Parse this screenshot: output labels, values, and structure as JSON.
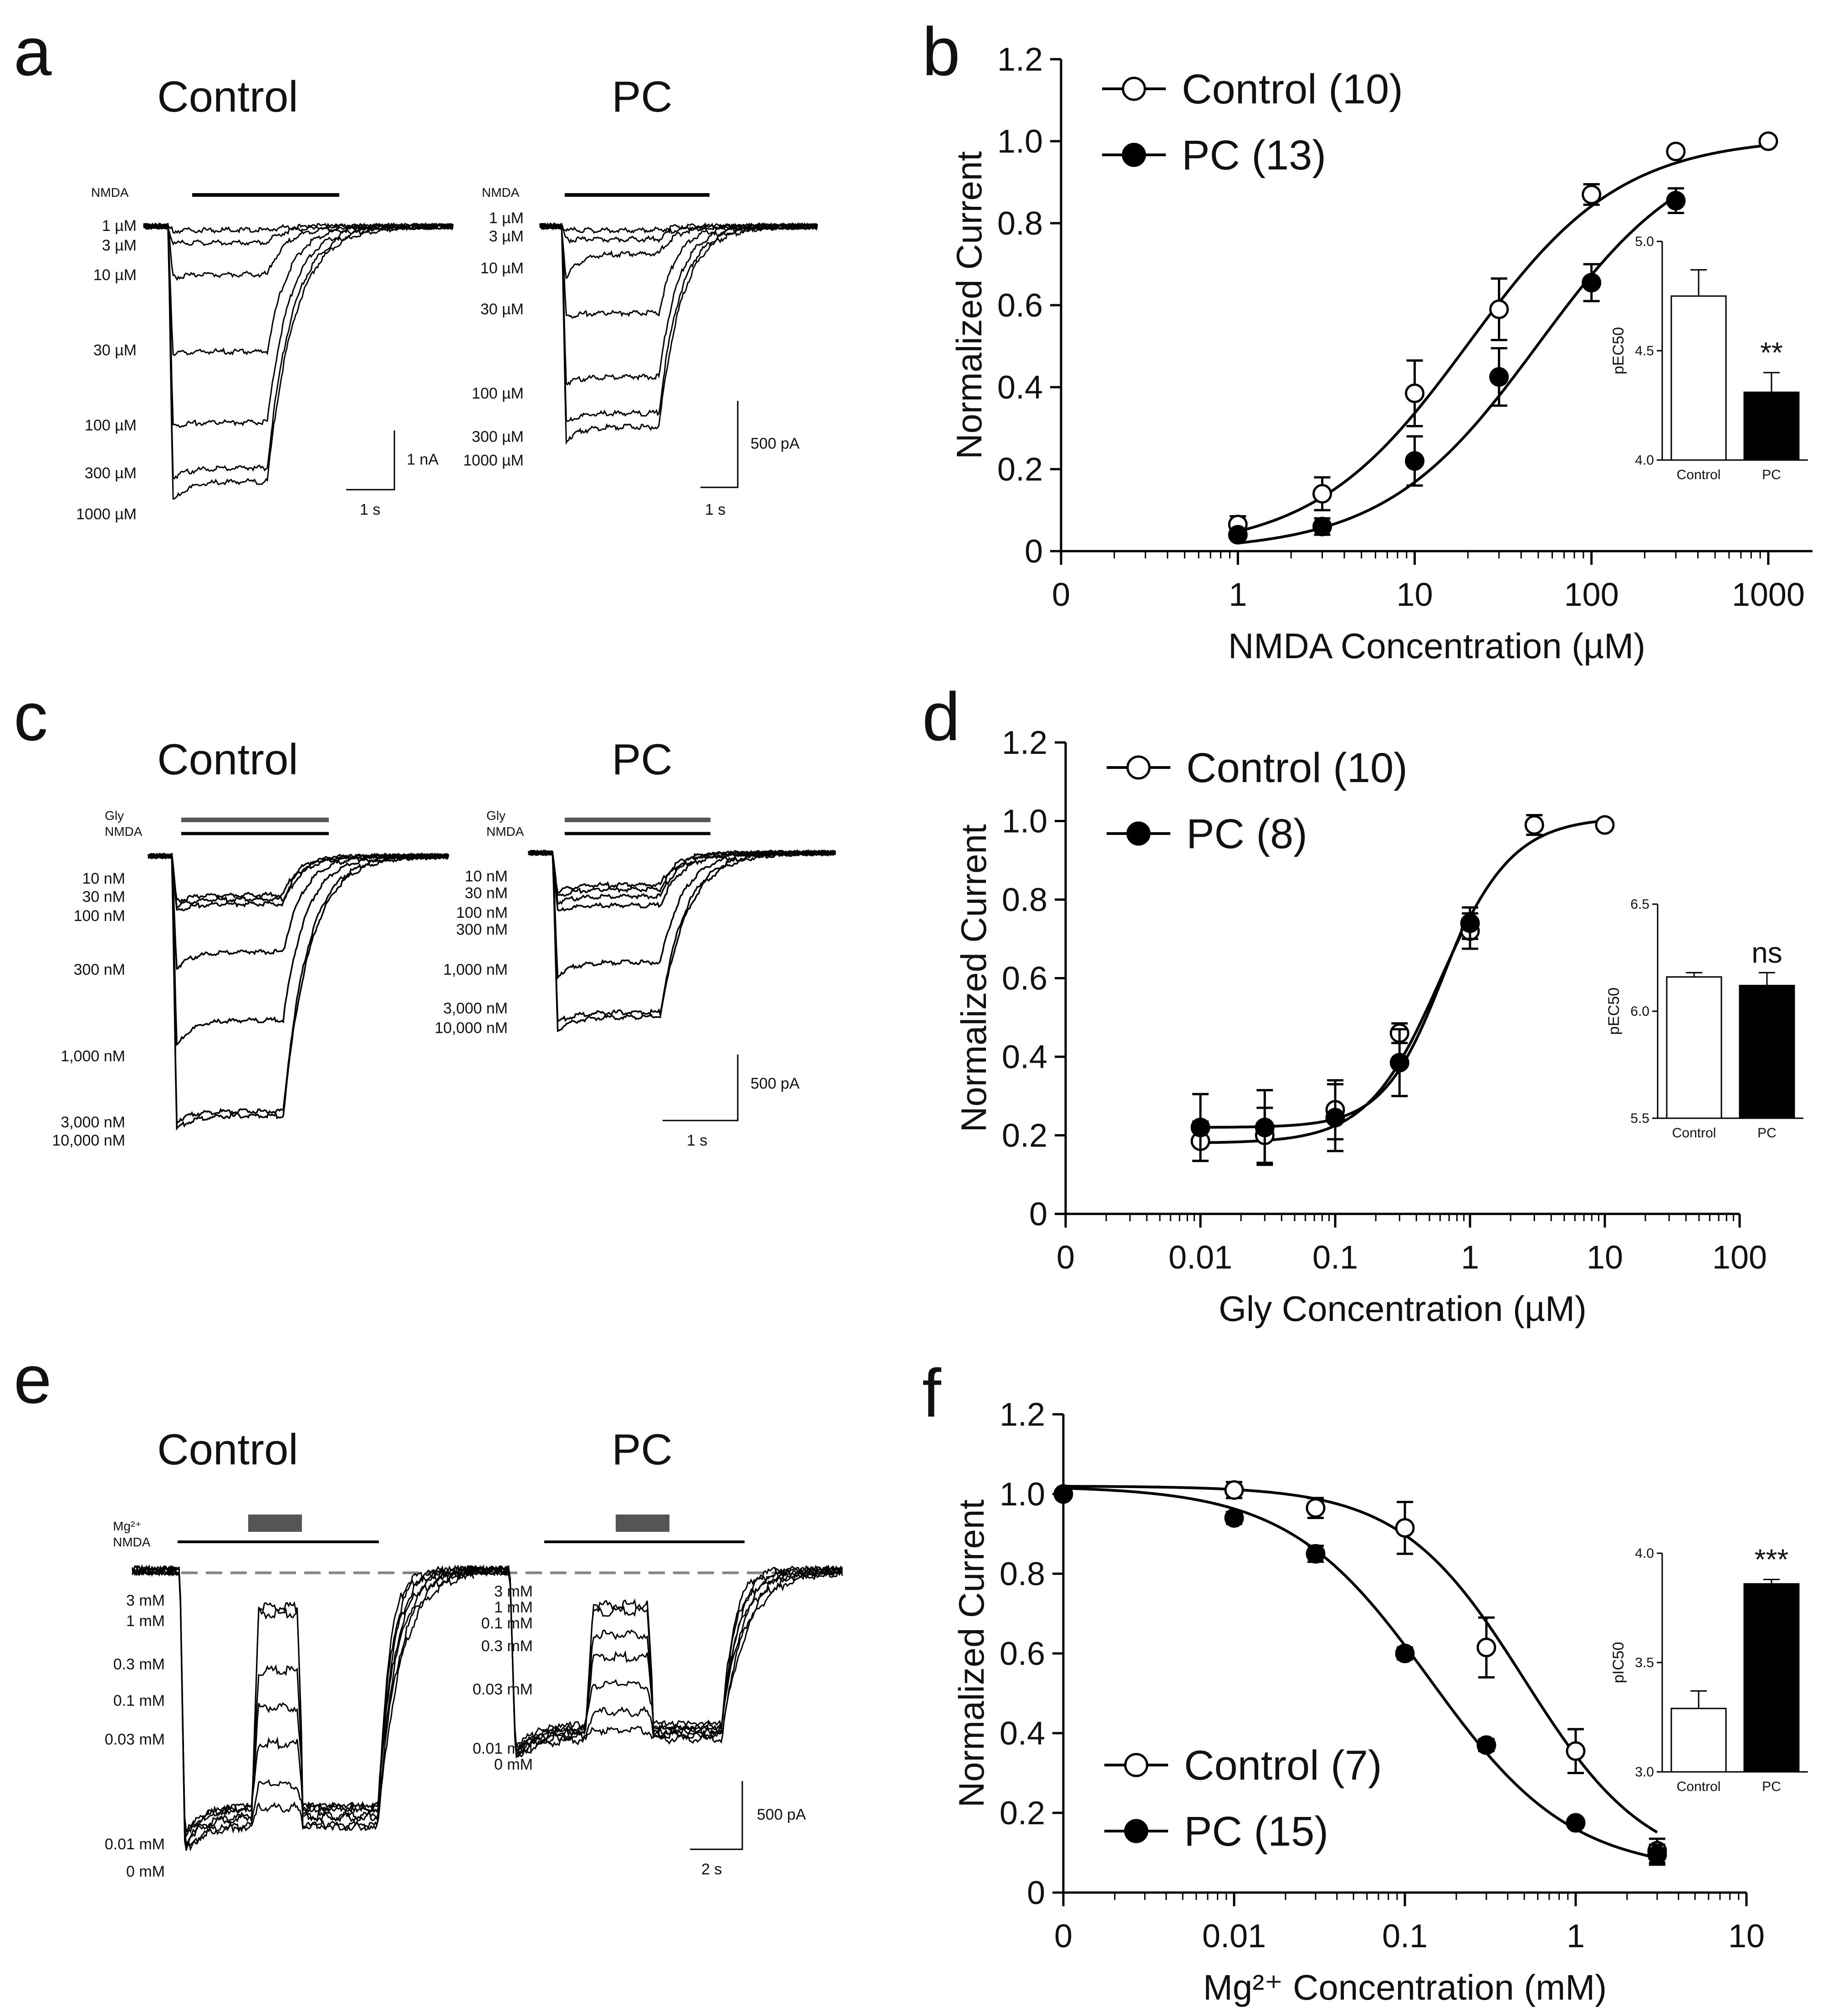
{
  "panels": {
    "a": {
      "letter": "a",
      "control_title": "Control",
      "pc_title": "PC",
      "bar_label": "NMDA",
      "control_concs": [
        "1 µM",
        "3 µM",
        "10 µM",
        "30 µM",
        "100 µM",
        "300 µM",
        "1000 µM"
      ],
      "pc_concs": [
        "1 µM",
        "3 µM",
        "10 µM",
        "30 µM",
        "100 µM",
        "300 µM",
        "1000 µM"
      ],
      "control_scale_current": "1 nA",
      "control_scale_time": "1 s",
      "pc_scale_current": "500 pA",
      "pc_scale_time": "1 s",
      "control_amplitudes": [
        0.02,
        0.05,
        0.18,
        0.45,
        0.68,
        0.83,
        0.92
      ],
      "pc_amplitudes": [
        0.02,
        0.05,
        0.18,
        0.45,
        0.68,
        0.83,
        0.92
      ]
    },
    "c": {
      "letter": "c",
      "control_title": "Control",
      "pc_title": "PC",
      "bar_label_1": "Gly",
      "bar_label_2": "NMDA",
      "control_concs": [
        "10 nM",
        "30 nM",
        "100 nM",
        "300 nM",
        "1,000 nM",
        "3,000 nM",
        "10,000 nM"
      ],
      "pc_concs": [
        "10 nM",
        "30 nM",
        "100 nM",
        "300 nM",
        "1,000 nM",
        "3,000 nM",
        "10,000 nM"
      ],
      "scale_current": "500 pA",
      "scale_time": "1 s"
    },
    "e": {
      "letter": "e",
      "control_title": "Control",
      "pc_title": "PC",
      "bar_label_1": "Mg²⁺",
      "bar_label_2": "NMDA",
      "control_concs": [
        "3 mM",
        "1 mM",
        "0.3 mM",
        "0.1 mM",
        "0.03 mM",
        "0.01 mM",
        "0 mM"
      ],
      "pc_concs": [
        "3 mM",
        "1 mM",
        "0.1 mM",
        "0.3 mM",
        "0.03 mM",
        "0.01 mM",
        "0 mM"
      ],
      "scale_current": "500 pA",
      "scale_time": "2 s"
    },
    "b": {
      "letter": "b"
    },
    "d": {
      "letter": "d"
    },
    "f": {
      "letter": "f"
    }
  },
  "chart_data": [
    {
      "id": "b",
      "type": "scatter",
      "xlabel": "NMDA Concentration (µM)",
      "ylabel": "Normalized Current",
      "xscale": "log",
      "x_ticks": [
        "0",
        "1",
        "10",
        "100",
        "1000"
      ],
      "y_ticks": [
        "0",
        "0.2",
        "0.4",
        "0.6",
        "0.8",
        "1.0",
        "1.2"
      ],
      "ylim": [
        0,
        1.2
      ],
      "legend_position": "top-left",
      "series": [
        {
          "name": "Control (10)",
          "marker": "open-circle",
          "x": [
            1,
            3,
            10,
            30,
            100,
            300,
            1000
          ],
          "y": [
            0.065,
            0.14,
            0.385,
            0.59,
            0.87,
            0.975,
            1.0
          ],
          "err": [
            0.02,
            0.04,
            0.08,
            0.075,
            0.025,
            0.01,
            0.0
          ],
          "fit_ec50": 20,
          "fit_hill": 1.0
        },
        {
          "name": "PC (13)",
          "marker": "filled-circle",
          "x": [
            1,
            3,
            10,
            30,
            100,
            300
          ],
          "y": [
            0.04,
            0.06,
            0.22,
            0.425,
            0.655,
            0.855
          ],
          "err": [
            0.01,
            0.02,
            0.06,
            0.07,
            0.045,
            0.03
          ],
          "fit_ec50": 50,
          "fit_hill": 1.0
        }
      ],
      "inset": {
        "type": "bar",
        "ylabel": "pEC50",
        "categories": [
          "Control",
          "PC"
        ],
        "values": [
          4.75,
          4.31
        ],
        "err": [
          0.12,
          0.09
        ],
        "y_ticks": [
          "4.0",
          "4.5",
          "5.0"
        ],
        "ylim": [
          4.0,
          5.0
        ],
        "significance": "**"
      }
    },
    {
      "id": "d",
      "type": "scatter",
      "xlabel": "Gly Concentration (µM)",
      "ylabel": "Normalized Current",
      "xscale": "log",
      "x_ticks": [
        "0",
        "0.01",
        "0.1",
        "1",
        "10",
        "100"
      ],
      "y_ticks": [
        "0",
        "0.2",
        "0.4",
        "0.6",
        "0.8",
        "1.0",
        "1.2"
      ],
      "ylim": [
        0,
        1.2
      ],
      "legend_position": "top-left",
      "series": [
        {
          "name": "Control (10)",
          "marker": "open-circle",
          "x": [
            0.01,
            0.03,
            0.1,
            0.3,
            1,
            3,
            10
          ],
          "y": [
            0.185,
            0.2,
            0.265,
            0.46,
            0.72,
            0.99,
            0.99
          ],
          "err": [
            0.05,
            0.07,
            0.075,
            0.025,
            0.045,
            0.025,
            0.0
          ],
          "fit_ec50": 0.6,
          "fit_bottom": 0.18,
          "fit_hill": 1.6
        },
        {
          "name": "PC (8)",
          "marker": "filled-circle",
          "x": [
            0.01,
            0.03,
            0.1,
            0.3,
            1
          ],
          "y": [
            0.22,
            0.22,
            0.245,
            0.385,
            0.74
          ],
          "err": [
            0.085,
            0.095,
            0.085,
            0.085,
            0.04
          ],
          "fit_ec50": 0.65,
          "fit_bottom": 0.22,
          "fit_hill": 1.9
        }
      ],
      "inset": {
        "type": "bar",
        "ylabel": "pEC50",
        "categories": [
          "Control",
          "PC"
        ],
        "values": [
          6.16,
          6.12
        ],
        "err": [
          0.02,
          0.06
        ],
        "y_ticks": [
          "5.5",
          "6.0",
          "6.5"
        ],
        "ylim": [
          5.5,
          6.5
        ],
        "significance": "ns"
      }
    },
    {
      "id": "f",
      "type": "scatter",
      "xlabel": "Mg²⁺ Concentration (mM)",
      "ylabel": "Normalized Current",
      "xscale": "log",
      "x_ticks": [
        "0",
        "0.01",
        "0.1",
        "1",
        "10"
      ],
      "y_ticks": [
        "0",
        "0.2",
        "0.4",
        "0.6",
        "0.8",
        "1.0",
        "1.2"
      ],
      "ylim": [
        0,
        1.2
      ],
      "legend_position": "bottom-left",
      "series": [
        {
          "name": "Control (7)",
          "marker": "open-circle",
          "x": [
            0.01,
            0.03,
            0.1,
            0.3,
            1,
            3
          ],
          "y": [
            1.01,
            0.965,
            0.915,
            0.615,
            0.355,
            0.105
          ],
          "err": [
            0.02,
            0.025,
            0.065,
            0.075,
            0.055,
            0.03
          ],
          "fit_ic50": 0.5,
          "fit_hill": 1.2
        },
        {
          "name": "PC (15)",
          "marker": "filled-circle",
          "x": [
            0.001,
            0.01,
            0.03,
            0.1,
            0.3,
            1,
            3
          ],
          "y": [
            1.0,
            0.94,
            0.85,
            0.6,
            0.37,
            0.175,
            0.095
          ],
          "err": [
            0.0,
            0.015,
            0.02,
            0.015,
            0.015,
            0.01,
            0.025
          ],
          "fit_ic50": 0.14,
          "fit_hill": 1.05
        }
      ],
      "inset": {
        "type": "bar",
        "ylabel": "pIC50",
        "categories": [
          "Control",
          "PC"
        ],
        "values": [
          3.29,
          3.86
        ],
        "err": [
          0.08,
          0.02
        ],
        "y_ticks": [
          "3.0",
          "3.5",
          "4.0"
        ],
        "ylim": [
          3.0,
          4.0
        ],
        "significance": "***"
      }
    }
  ]
}
